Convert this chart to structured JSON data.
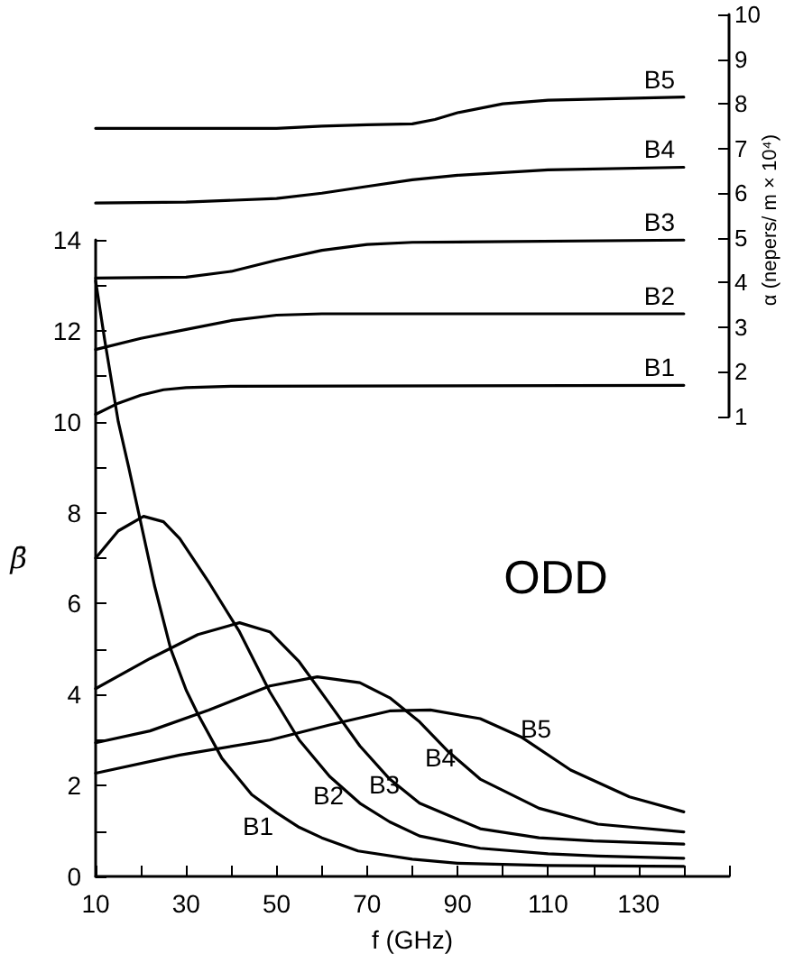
{
  "chart_data": [
    {
      "type": "line",
      "ylabel": "α (nepers/ m × 10⁴)",
      "tick_labels": "y",
      "xlim": [
        10,
        150
      ],
      "ylim": [
        1,
        10
      ],
      "yticks": [
        1,
        2,
        3,
        4,
        5,
        6,
        7,
        8,
        9,
        10
      ],
      "marker": "none",
      "line_style": "solid",
      "series": [
        {
          "name": "B1",
          "color": "#000000",
          "x": [
            10,
            15,
            20,
            25,
            30,
            40,
            140
          ],
          "values": [
            1.05,
            1.3,
            1.48,
            1.6,
            1.65,
            1.68,
            1.7
          ]
        },
        {
          "name": "B2",
          "color": "#000000",
          "x": [
            10,
            20,
            30,
            40,
            50,
            60,
            140
          ],
          "values": [
            2.5,
            2.75,
            2.95,
            3.15,
            3.27,
            3.3,
            3.3
          ]
        },
        {
          "name": "B3",
          "color": "#000000",
          "x": [
            10,
            30,
            40,
            50,
            60,
            70,
            80,
            140
          ],
          "values": [
            4.1,
            4.12,
            4.25,
            4.5,
            4.72,
            4.85,
            4.9,
            4.95
          ]
        },
        {
          "name": "B4",
          "color": "#000000",
          "x": [
            10,
            30,
            50,
            60,
            70,
            80,
            90,
            110,
            140
          ],
          "values": [
            5.78,
            5.8,
            5.88,
            6.0,
            6.15,
            6.3,
            6.4,
            6.52,
            6.58
          ]
        },
        {
          "name": "B5",
          "color": "#000000",
          "x": [
            10,
            50,
            60,
            70,
            80,
            85,
            90,
            100,
            110,
            140
          ],
          "values": [
            7.45,
            7.45,
            7.5,
            7.53,
            7.55,
            7.65,
            7.8,
            8.0,
            8.08,
            8.15
          ]
        }
      ]
    },
    {
      "type": "line",
      "xlabel": "f (GHz)",
      "ylabel": "β̄",
      "xlim": [
        10,
        150
      ],
      "xticks": [
        10,
        {
          "value": 20,
          "label": null
        },
        30,
        {
          "value": 40,
          "label": null
        },
        50,
        {
          "value": 60,
          "label": null
        },
        70,
        {
          "value": 80,
          "label": null
        },
        90,
        {
          "value": 100,
          "label": null
        },
        110,
        {
          "value": 120,
          "label": null
        },
        130,
        {
          "value": 140,
          "label": null
        },
        {
          "value": 150,
          "label": null
        }
      ],
      "ylim": [
        0,
        14
      ],
      "yticks": [
        0,
        {
          "value": 1,
          "label": null
        },
        2,
        {
          "value": 3,
          "label": null
        },
        4,
        {
          "value": 5,
          "label": null
        },
        6,
        {
          "value": 7,
          "label": null
        },
        8,
        {
          "value": 9,
          "label": null
        },
        10,
        {
          "value": 11,
          "label": null
        },
        12,
        {
          "value": 13,
          "label": null
        },
        14
      ],
      "marker": "none",
      "line_style": "solid",
      "series": [
        {
          "color": "#000000",
          "x": [
            10,
            12,
            15,
            17.3,
            19.5,
            23,
            26.6,
            30,
            32.6,
            37.9,
            44.5,
            50,
            55,
            60,
            68,
            80,
            90,
            110,
            140
          ],
          "values": [
            13.1,
            11.8,
            10.0,
            9.0,
            8.0,
            6.4,
            5.0,
            4.1,
            3.57,
            2.6,
            1.8,
            1.4,
            1.08,
            0.85,
            0.56,
            0.38,
            0.29,
            0.24,
            0.22
          ]
        },
        {
          "color": "#000000",
          "x": [
            10,
            15,
            20.6,
            25,
            28.6,
            35.2,
            41.8,
            48.5,
            55,
            61.7,
            68.4,
            75,
            81.6,
            95,
            110,
            121,
            140
          ],
          "values": [
            7.0,
            7.6,
            7.92,
            7.8,
            7.43,
            6.44,
            5.38,
            4.06,
            3.0,
            2.2,
            1.61,
            1.2,
            0.89,
            0.62,
            0.5,
            0.45,
            0.4
          ]
        },
        {
          "color": "#000000",
          "x": [
            10,
            22,
            32.6,
            41.8,
            48.5,
            55,
            61.7,
            68.4,
            75,
            81.6,
            95,
            108,
            120,
            140
          ],
          "values": [
            4.13,
            4.79,
            5.32,
            5.58,
            5.38,
            4.72,
            3.8,
            2.87,
            2.14,
            1.61,
            1.05,
            0.85,
            0.78,
            0.71
          ]
        },
        {
          "color": "#000000",
          "x": [
            10,
            22,
            35,
            48.5,
            59,
            68.4,
            75,
            81.6,
            88,
            95,
            108,
            121,
            140
          ],
          "values": [
            2.94,
            3.2,
            3.66,
            4.19,
            4.39,
            4.26,
            3.93,
            3.4,
            2.74,
            2.14,
            1.5,
            1.15,
            0.98
          ]
        },
        {
          "color": "#000000",
          "x": [
            10,
            28.6,
            48.5,
            61.7,
            75,
            84,
            95,
            104,
            115,
            128,
            140
          ],
          "values": [
            2.27,
            2.67,
            3.0,
            3.33,
            3.64,
            3.66,
            3.47,
            3.07,
            2.34,
            1.75,
            1.42
          ]
        }
      ],
      "annotations": [
        "B1",
        "B2",
        "B3",
        "B4",
        "B5",
        "ODD"
      ]
    }
  ]
}
